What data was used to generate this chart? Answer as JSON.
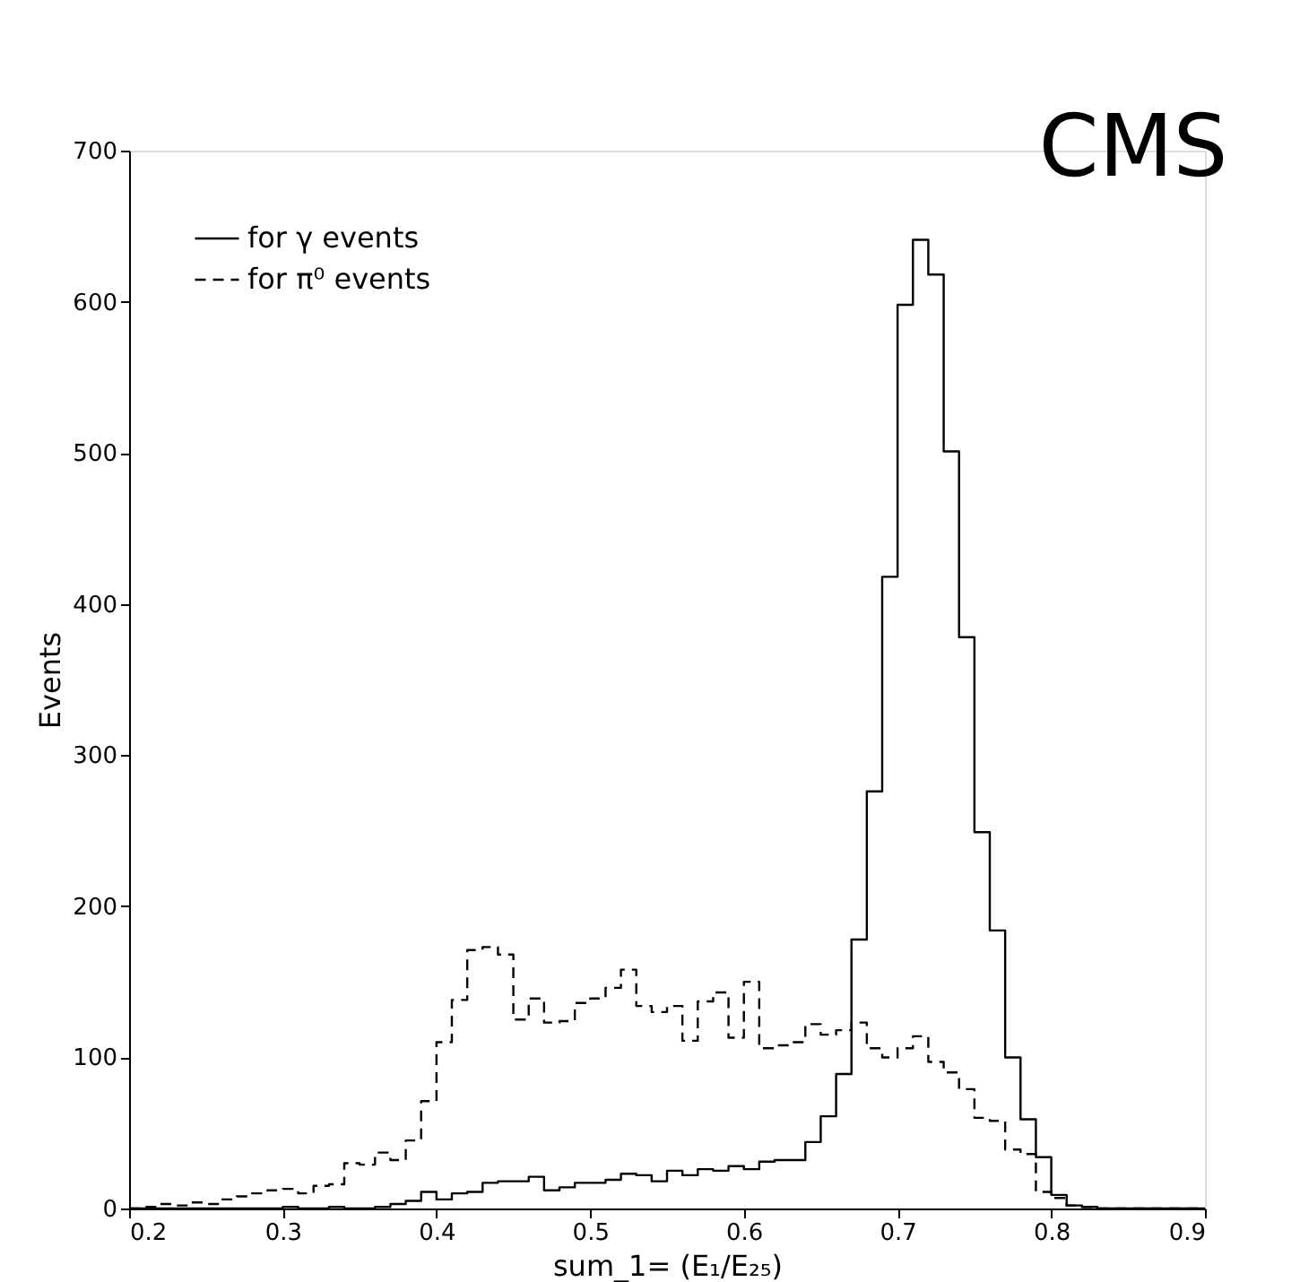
{
  "chart_data": {
    "type": "histogram",
    "xlabel": "sum_1= (E₁/E₂₅)",
    "ylabel": "Events",
    "bins": [
      0.2,
      0.21,
      0.22,
      0.23,
      0.24,
      0.25,
      0.26,
      0.27,
      0.28,
      0.29,
      0.3,
      0.31,
      0.32,
      0.33,
      0.34,
      0.35,
      0.36,
      0.37,
      0.38,
      0.39,
      0.4,
      0.41,
      0.42,
      0.43,
      0.44,
      0.45,
      0.46,
      0.47,
      0.48,
      0.49,
      0.5,
      0.51,
      0.52,
      0.53,
      0.54,
      0.55,
      0.56,
      0.57,
      0.58,
      0.59,
      0.6,
      0.61,
      0.62,
      0.63,
      0.64,
      0.65,
      0.66,
      0.67,
      0.68,
      0.69,
      0.7,
      0.71,
      0.72,
      0.73,
      0.74,
      0.75,
      0.76,
      0.77,
      0.78,
      0.79,
      0.8,
      0.81,
      0.82,
      0.83,
      0.84,
      0.85,
      0.86,
      0.87,
      0.88,
      0.89,
      0.9
    ],
    "series": [
      {
        "name": "for γ events",
        "color": "#000000",
        "line_style": "solid",
        "values": [
          0,
          0,
          0,
          0,
          0,
          0,
          0,
          0,
          0,
          0,
          1,
          0,
          0,
          1,
          0,
          0,
          1,
          3,
          5,
          11,
          6,
          10,
          11,
          17,
          18,
          18,
          21,
          12,
          14,
          17,
          17,
          19,
          23,
          22,
          18,
          25,
          22,
          26,
          25,
          28,
          26,
          31,
          32,
          32,
          44,
          61,
          89,
          178,
          276,
          418,
          598,
          641,
          618,
          501,
          378,
          249,
          184,
          100,
          59,
          34,
          9,
          2,
          1,
          0,
          0,
          0,
          0,
          0,
          0,
          0
        ]
      },
      {
        "name": "for π⁰ events",
        "color": "#000000",
        "line_style": "dashed",
        "values": [
          0,
          1,
          3,
          2,
          4,
          3,
          6,
          8,
          10,
          12,
          13,
          10,
          15,
          16,
          30,
          29,
          37,
          32,
          45,
          71,
          110,
          138,
          171,
          173,
          168,
          125,
          139,
          123,
          124,
          136,
          139,
          146,
          158,
          134,
          130,
          134,
          111,
          137,
          143,
          113,
          150,
          106,
          108,
          110,
          122,
          115,
          118,
          123,
          106,
          100,
          106,
          114,
          97,
          90,
          79,
          60,
          58,
          39,
          36,
          11,
          7,
          2,
          1,
          0,
          0,
          0,
          0,
          0,
          0,
          0
        ]
      }
    ],
    "xlim": [
      0.2,
      0.9
    ],
    "xticks": [
      0.2,
      0.3,
      0.4,
      0.5,
      0.6,
      0.7,
      0.8,
      0.9
    ],
    "ylim": [
      0,
      700
    ],
    "yticks": [
      0,
      100,
      200,
      300,
      400,
      500,
      600,
      700
    ],
    "legend": "top left",
    "grid": false,
    "annotations": [
      "CMS"
    ]
  }
}
